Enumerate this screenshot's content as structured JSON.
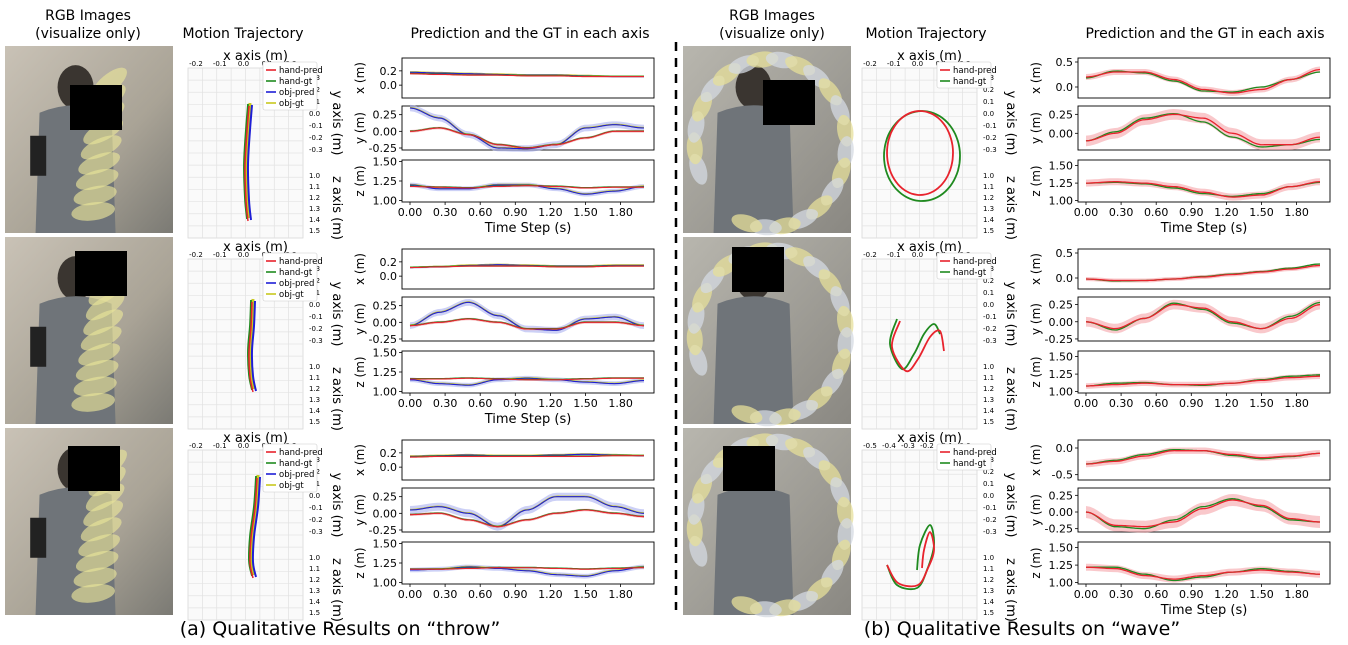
{
  "headers": {
    "rgb_line1": "RGB Images",
    "rgb_line2": "(visualize only)",
    "motion": "Motion Trajectory",
    "prediction": "Prediction and the GT in each axis"
  },
  "captions": {
    "throw": "(a) Qualitative Results on “throw”",
    "wave": "(b) Qualitative Results on “wave”"
  },
  "trajectory_axes": {
    "x_title": "x axis (m)",
    "y_title": "y axis (m)",
    "z_title": "z axis (m)",
    "x_ticks_a": [
      "-0.2",
      "-0.1",
      "0.0",
      "0.1",
      "0.2"
    ],
    "x_ticks_b": [
      "-0.5",
      "-0.4",
      "-0.3",
      "-0.2",
      "-0.1",
      "0.0"
    ],
    "y_ticks": [
      "0.3",
      "0.2",
      "0.1",
      "0.0",
      "-0.1",
      "-0.2",
      "-0.3"
    ],
    "z_ticks": [
      "1.0",
      "1.1",
      "1.2",
      "1.3",
      "1.4",
      "1.5"
    ]
  },
  "legends": {
    "throw": [
      "hand-pred",
      "hand-gt",
      "obj-pred",
      "obj-gt"
    ],
    "wave": [
      "hand-pred",
      "hand-gt"
    ]
  },
  "colors": {
    "hand_pred": "#e8232d",
    "hand_gt": "#1f8a1f",
    "obj_pred": "#1f1fd6",
    "obj_gt": "#c8c81e",
    "band_red": "#f5a3a8",
    "band_blue": "#aab0f0",
    "divider": "#000000"
  },
  "chart_data": [
    {
      "panel": "throw-1",
      "type": "line",
      "xlabel": "Time Step (s)",
      "x_ticks": [
        "0.00",
        "0.30",
        "0.60",
        "0.90",
        "1.20",
        "1.50",
        "1.80"
      ],
      "xlim": [
        0,
        2
      ],
      "axes": [
        {
          "ylabel": "x (m)",
          "ylim": [
            -0.18,
            0.38
          ],
          "yticks": [
            "0.0",
            "0.2"
          ],
          "ytick_values": [
            0,
            0.2
          ],
          "hand": [
            0.16,
            0.15,
            0.14,
            0.14,
            0.13,
            0.13,
            0.12,
            0.12,
            0.12
          ],
          "obj": [
            0.18,
            0.17,
            0.16,
            0.15,
            0.14,
            0.14,
            0.13,
            0.12,
            0.12
          ],
          "band_h": 0.01,
          "band_o": 0.015
        },
        {
          "ylabel": "y (m)",
          "ylim": [
            -0.28,
            0.38
          ],
          "yticks": [
            "0.25",
            "0.00",
            "-0.25"
          ],
          "ytick_values": [
            0.25,
            0,
            -0.25
          ],
          "hand": [
            0,
            0.05,
            -0.05,
            -0.2,
            -0.25,
            -0.2,
            -0.1,
            0,
            0
          ],
          "obj": [
            0.35,
            0.2,
            -0.05,
            -0.25,
            -0.26,
            -0.2,
            0.05,
            0.1,
            0.05
          ],
          "band_h": 0.02,
          "band_o": 0.05
        },
        {
          "ylabel": "z (m)",
          "ylim": [
            0.98,
            1.52
          ],
          "yticks": [
            "1.50",
            "1.25",
            "1.00"
          ],
          "ytick_values": [
            1.5,
            1.25,
            1
          ],
          "hand": [
            1.18,
            1.17,
            1.16,
            1.18,
            1.19,
            1.18,
            1.16,
            1.17,
            1.17
          ],
          "obj": [
            1.2,
            1.15,
            1.15,
            1.2,
            1.2,
            1.15,
            1.08,
            1.12,
            1.18
          ],
          "band_h": 0.01,
          "band_o": 0.03
        }
      ]
    },
    {
      "panel": "throw-2",
      "type": "line",
      "xlabel": "Time Step (s)",
      "x_ticks": [
        "0.00",
        "0.30",
        "0.60",
        "0.90",
        "1.20",
        "1.50",
        "1.80"
      ],
      "xlim": [
        0,
        2
      ],
      "axes": [
        {
          "ylabel": "x (m)",
          "ylim": [
            -0.18,
            0.38
          ],
          "yticks": [
            "0.0",
            "0.2"
          ],
          "ytick_values": [
            0,
            0.2
          ],
          "hand": [
            0.12,
            0.13,
            0.14,
            0.14,
            0.14,
            0.13,
            0.13,
            0.14,
            0.14
          ],
          "obj": [
            0.12,
            0.13,
            0.15,
            0.16,
            0.15,
            0.14,
            0.14,
            0.15,
            0.15
          ],
          "band_h": 0.01,
          "band_o": 0.015
        },
        {
          "ylabel": "y (m)",
          "ylim": [
            -0.28,
            0.38
          ],
          "yticks": [
            "0.25",
            "0.00",
            "-0.25"
          ],
          "ytick_values": [
            0.25,
            0,
            -0.25
          ],
          "hand": [
            -0.05,
            0,
            0.05,
            0,
            -0.1,
            -0.1,
            0,
            0,
            -0.05
          ],
          "obj": [
            -0.05,
            0.15,
            0.3,
            0.1,
            -0.1,
            -0.12,
            0.05,
            0.08,
            -0.05
          ],
          "band_h": 0.02,
          "band_o": 0.05
        },
        {
          "ylabel": "z (m)",
          "ylim": [
            0.98,
            1.52
          ],
          "yticks": [
            "1.50",
            "1.25",
            "1.00"
          ],
          "ytick_values": [
            1.5,
            1.25,
            1
          ],
          "hand": [
            1.16,
            1.16,
            1.17,
            1.16,
            1.15,
            1.15,
            1.16,
            1.17,
            1.17
          ],
          "obj": [
            1.15,
            1.1,
            1.08,
            1.15,
            1.17,
            1.15,
            1.12,
            1.1,
            1.14
          ],
          "band_h": 0.01,
          "band_o": 0.03
        }
      ]
    },
    {
      "panel": "throw-3",
      "type": "line",
      "xlabel": "",
      "x_ticks": [
        "0.00",
        "0.30",
        "0.60",
        "0.90",
        "1.20",
        "1.50",
        "1.80"
      ],
      "xlim": [
        0,
        2
      ],
      "axes": [
        {
          "ylabel": "x (m)",
          "ylim": [
            -0.18,
            0.38
          ],
          "yticks": [
            "0.0",
            "0.2"
          ],
          "ytick_values": [
            0,
            0.2
          ],
          "hand": [
            0.14,
            0.15,
            0.15,
            0.15,
            0.15,
            0.15,
            0.15,
            0.16,
            0.16
          ],
          "obj": [
            0.15,
            0.16,
            0.17,
            0.16,
            0.16,
            0.17,
            0.18,
            0.17,
            0.16
          ],
          "band_h": 0.01,
          "band_o": 0.015
        },
        {
          "ylabel": "y (m)",
          "ylim": [
            -0.28,
            0.38
          ],
          "yticks": [
            "0.25",
            "0.00",
            "-0.25"
          ],
          "ytick_values": [
            0.25,
            0,
            -0.25
          ],
          "hand": [
            -0.02,
            0,
            -0.1,
            -0.2,
            -0.1,
            0,
            0.05,
            0,
            -0.05
          ],
          "obj": [
            0.05,
            0.1,
            0,
            -0.2,
            0.05,
            0.25,
            0.25,
            0.1,
            0
          ],
          "band_h": 0.02,
          "band_o": 0.06
        },
        {
          "ylabel": "z (m)",
          "ylim": [
            0.98,
            1.52
          ],
          "yticks": [
            "1.50",
            "1.25",
            "1.00"
          ],
          "ytick_values": [
            1.5,
            1.25,
            1
          ],
          "hand": [
            1.17,
            1.17,
            1.18,
            1.19,
            1.19,
            1.18,
            1.17,
            1.18,
            1.19
          ],
          "obj": [
            1.16,
            1.17,
            1.2,
            1.18,
            1.15,
            1.1,
            1.08,
            1.15,
            1.2
          ],
          "band_h": 0.01,
          "band_o": 0.03
        }
      ]
    },
    {
      "panel": "wave-1",
      "type": "line",
      "xlabel": "Time Step (s)",
      "x_ticks": [
        "0.00",
        "0.30",
        "0.60",
        "0.90",
        "1.20",
        "1.50",
        "1.80"
      ],
      "xlim": [
        0,
        2
      ],
      "axes": [
        {
          "ylabel": "x (m)",
          "ylim": [
            -0.22,
            0.58
          ],
          "yticks": [
            "0.5",
            "0.0"
          ],
          "ytick_values": [
            0.5,
            0
          ],
          "hand": [
            0.2,
            0.3,
            0.3,
            0.15,
            -0.05,
            -0.12,
            -0.05,
            0.15,
            0.35
          ],
          "gt": [
            0.18,
            0.32,
            0.28,
            0.12,
            -0.08,
            -0.1,
            0,
            0.15,
            0.3
          ],
          "band_h": 0.06
        },
        {
          "ylabel": "y (m)",
          "ylim": [
            -0.22,
            0.36
          ],
          "yticks": [
            "0.25",
            "0.00"
          ],
          "ytick_values": [
            0.25,
            0
          ],
          "hand": [
            -0.1,
            0,
            0.18,
            0.25,
            0.2,
            0,
            -0.15,
            -0.15,
            -0.05
          ],
          "gt": [
            -0.1,
            0.02,
            0.2,
            0.26,
            0.15,
            -0.05,
            -0.18,
            -0.15,
            -0.08
          ],
          "band_h": 0.07
        },
        {
          "ylabel": "z (m)",
          "ylim": [
            0.98,
            1.58
          ],
          "yticks": [
            "1.50",
            "1.25",
            "1.00"
          ],
          "ytick_values": [
            1.5,
            1.25,
            1
          ],
          "hand": [
            1.25,
            1.27,
            1.25,
            1.2,
            1.12,
            1.05,
            1.08,
            1.2,
            1.27
          ],
          "gt": [
            1.25,
            1.26,
            1.24,
            1.18,
            1.1,
            1.06,
            1.1,
            1.2,
            1.26
          ],
          "band_h": 0.05
        }
      ]
    },
    {
      "panel": "wave-2",
      "type": "line",
      "xlabel": "",
      "x_ticks": [
        "0.00",
        "0.30",
        "0.60",
        "0.90",
        "1.20",
        "1.50",
        "1.80"
      ],
      "xlim": [
        0,
        2
      ],
      "axes": [
        {
          "ylabel": "x (m)",
          "ylim": [
            -0.22,
            0.58
          ],
          "yticks": [
            "0.5",
            "0.0"
          ],
          "ytick_values": [
            0.5,
            0
          ],
          "hand": [
            -0.02,
            -0.05,
            -0.05,
            -0.02,
            0.02,
            0.07,
            0.12,
            0.18,
            0.25
          ],
          "gt": [
            -0.02,
            -0.06,
            -0.05,
            -0.02,
            0.03,
            0.08,
            0.13,
            0.2,
            0.28
          ],
          "band_h": 0.04
        },
        {
          "ylabel": "y (m)",
          "ylim": [
            -0.28,
            0.36
          ],
          "yticks": [
            "0.25",
            "0.00",
            "-0.25"
          ],
          "ytick_values": [
            0.25,
            0,
            -0.25
          ],
          "hand": [
            0,
            -0.1,
            0.05,
            0.25,
            0.2,
            0,
            -0.1,
            0.05,
            0.25
          ],
          "gt": [
            0,
            -0.12,
            0.05,
            0.27,
            0.18,
            -0.02,
            -0.1,
            0.08,
            0.28
          ],
          "band_h": 0.07
        },
        {
          "ylabel": "z (m)",
          "ylim": [
            0.98,
            1.58
          ],
          "yticks": [
            "1.50",
            "1.25",
            "1.00"
          ],
          "ytick_values": [
            1.5,
            1.25,
            1
          ],
          "hand": [
            1.08,
            1.1,
            1.12,
            1.1,
            1.1,
            1.12,
            1.16,
            1.2,
            1.22
          ],
          "gt": [
            1.08,
            1.12,
            1.13,
            1.1,
            1.09,
            1.12,
            1.17,
            1.22,
            1.24
          ],
          "band_h": 0.04
        }
      ]
    },
    {
      "panel": "wave-3",
      "type": "line",
      "xlabel": "Time Step (s)",
      "x_ticks": [
        "0.00",
        "0.30",
        "0.60",
        "0.90",
        "1.20",
        "1.50",
        "1.80"
      ],
      "xlim": [
        0,
        2
      ],
      "axes": [
        {
          "ylabel": "x (m)",
          "ylim": [
            -0.6,
            0.15
          ],
          "yticks": [
            "0.0",
            "-0.5"
          ],
          "ytick_values": [
            0,
            -0.5
          ],
          "hand": [
            -0.3,
            -0.25,
            -0.15,
            -0.05,
            -0.05,
            -0.12,
            -0.18,
            -0.15,
            -0.1
          ],
          "gt": [
            -0.3,
            -0.23,
            -0.12,
            -0.03,
            -0.05,
            -0.14,
            -0.2,
            -0.16,
            -0.1
          ],
          "band_h": 0.06
        },
        {
          "ylabel": "y (m)",
          "ylim": [
            -0.3,
            0.36
          ],
          "yticks": [
            "0.25",
            "0.00",
            "-0.25"
          ],
          "ytick_values": [
            0.25,
            0,
            -0.25
          ],
          "hand": [
            0,
            -0.2,
            -0.22,
            -0.15,
            0.05,
            0.18,
            0.1,
            -0.1,
            -0.15
          ],
          "gt": [
            0,
            -0.22,
            -0.25,
            -0.12,
            0.08,
            0.2,
            0.08,
            -0.12,
            -0.15
          ],
          "band_h": 0.09
        },
        {
          "ylabel": "z (m)",
          "ylim": [
            0.98,
            1.58
          ],
          "yticks": [
            "1.50",
            "1.25",
            "1.00"
          ],
          "ytick_values": [
            1.5,
            1.25,
            1
          ],
          "hand": [
            1.22,
            1.2,
            1.1,
            1.05,
            1.1,
            1.15,
            1.18,
            1.15,
            1.12
          ],
          "gt": [
            1.22,
            1.22,
            1.12,
            1.03,
            1.08,
            1.15,
            1.2,
            1.16,
            1.12
          ],
          "band_h": 0.05
        }
      ]
    }
  ]
}
